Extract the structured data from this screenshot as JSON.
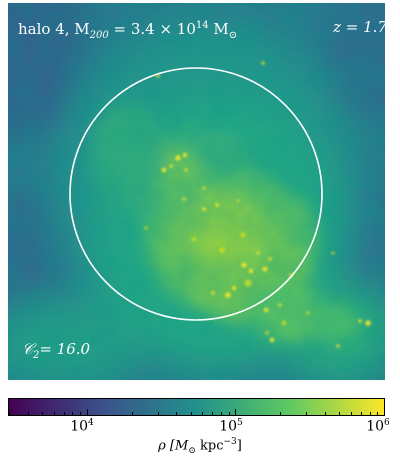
{
  "annotations": {
    "halo_label": "halo 4,  M",
    "halo_mass_sub": "200",
    "halo_mass_value": " = 3.4 × 10",
    "halo_mass_exp": "14",
    "halo_mass_unit": " M",
    "halo_mass_unit_sub": "⊙",
    "redshift": "z = 1.7",
    "concentration": "𝒞",
    "concentration_sub": "2",
    "concentration_value": "= 16.0"
  },
  "colorbar": {
    "ticks": [
      {
        "base": "10",
        "exp": "4"
      },
      {
        "base": "10",
        "exp": "5"
      },
      {
        "base": "10",
        "exp": "6"
      }
    ],
    "label_prefix": "ρ [M",
    "label_sun": "⊙",
    "label_unit": " kpc",
    "label_exp": "−3",
    "label_suffix": "]",
    "colormap": "viridis",
    "scale": "log",
    "range": [
      3000,
      1000000
    ]
  },
  "colors": {
    "circle": "#ffffff",
    "viridis_stops": [
      "#440154",
      "#3b528b",
      "#21918c",
      "#5ec962",
      "#fde725"
    ]
  }
}
